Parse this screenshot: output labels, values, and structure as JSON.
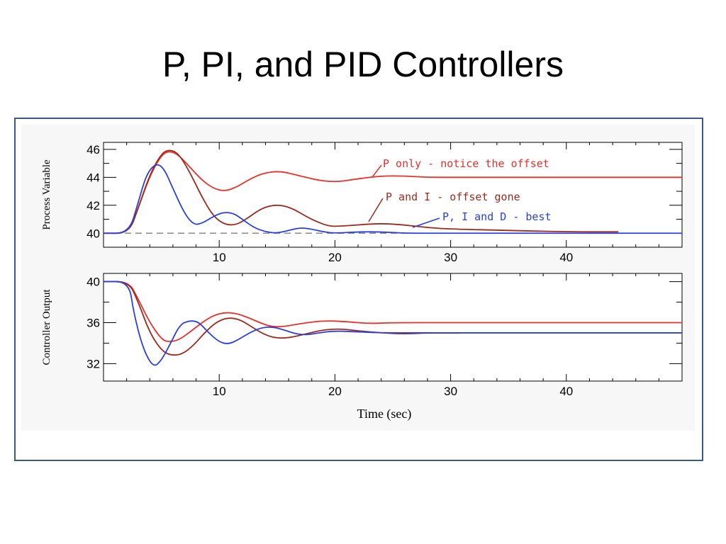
{
  "slide": {
    "title": "P, PI, and PID Controllers"
  },
  "colors": {
    "p_only": "#e8302a",
    "p_and_i": "#9b2a1f",
    "pid": "#2b3fe0",
    "setpoint": "#8a8a8a",
    "frame_border": "#3a5a84",
    "plot_bg": "#f7f7f7"
  },
  "chart_data": [
    {
      "type": "line",
      "ylabel": "Process Variable",
      "xlabel": "",
      "xlim": [
        0,
        50
      ],
      "ylim": [
        39,
        46.5
      ],
      "xticks": [
        10,
        20,
        30,
        40
      ],
      "yticks": [
        40,
        42,
        44,
        46
      ],
      "setpoint": 40,
      "annotations": [
        {
          "text": "P only - notice the offset",
          "series": "P only"
        },
        {
          "text": "P and I - offset gone",
          "series": "P and I"
        },
        {
          "text": "P, I and D - best",
          "series": "P, I and D"
        }
      ],
      "series": [
        {
          "name": "P only",
          "x": [
            0,
            2.2,
            3,
            4,
            5,
            5.7,
            6.5,
            7.5,
            8.5,
            9.5,
            10.5,
            11.5,
            12.5,
            13.5,
            14.5,
            15.5,
            16.5,
            17.5,
            18.5,
            19.5,
            20.5,
            22,
            24,
            26,
            28,
            30,
            35,
            40,
            45,
            50
          ],
          "y": [
            40,
            40,
            41.8,
            44.1,
            45.6,
            45.9,
            45.6,
            44.7,
            43.8,
            43.2,
            43.0,
            43.3,
            43.8,
            44.2,
            44.4,
            44.4,
            44.2,
            44.0,
            43.8,
            43.7,
            43.7,
            43.9,
            44.1,
            44.1,
            44.0,
            44.0,
            44.0,
            44.0,
            44.0,
            44.0
          ]
        },
        {
          "name": "P and I",
          "x": [
            0,
            2.2,
            3,
            4,
            5,
            5.7,
            6.5,
            7.5,
            8.5,
            9.5,
            10.5,
            11.5,
            12.5,
            13.5,
            14.5,
            15.5,
            16.5,
            17.5,
            18.5,
            19.5,
            20.5,
            22,
            24,
            26,
            28,
            30,
            35,
            40,
            44.5
          ],
          "y": [
            40,
            40,
            41.8,
            44.2,
            45.7,
            46.0,
            45.7,
            44.3,
            42.6,
            41.2,
            40.6,
            40.6,
            41.1,
            41.7,
            42.0,
            42.0,
            41.7,
            41.2,
            40.8,
            40.5,
            40.5,
            40.6,
            40.7,
            40.6,
            40.4,
            40.3,
            40.2,
            40.1,
            40.1
          ]
        },
        {
          "name": "P, I and D",
          "x": [
            0,
            2.2,
            3,
            3.7,
            4.5,
            5.2,
            6,
            7,
            7.8,
            8.5,
            9.3,
            10,
            10.6,
            11.3,
            12,
            13,
            14,
            15,
            16,
            17,
            18,
            19,
            20,
            22,
            24,
            26,
            28,
            30,
            32,
            35,
            40,
            45,
            50
          ],
          "y": [
            40,
            40,
            42.2,
            44.2,
            45.0,
            44.7,
            43.2,
            41.4,
            40.6,
            40.7,
            41.1,
            41.4,
            41.5,
            41.4,
            41.0,
            40.4,
            40.1,
            40.0,
            40.2,
            40.4,
            40.3,
            40.1,
            40.0,
            40.1,
            40.1,
            40.0,
            40.0,
            40.0,
            40.0,
            40.0,
            40.0,
            40.0,
            40.0
          ]
        }
      ]
    },
    {
      "type": "line",
      "ylabel": "Controller Output",
      "xlabel": "Time (sec)",
      "xlim": [
        0,
        50
      ],
      "ylim": [
        30.3,
        40.8
      ],
      "xticks": [
        10,
        20,
        30,
        40
      ],
      "yticks": [
        32,
        36,
        40
      ],
      "series": [
        {
          "name": "P only",
          "x": [
            0,
            2.2,
            3,
            4,
            5,
            5.6,
            6.5,
            7.5,
            8.5,
            9.5,
            10.5,
            11.5,
            12.5,
            13.5,
            14.5,
            15.5,
            17,
            19,
            21,
            23,
            25,
            30,
            35,
            40,
            45,
            50
          ],
          "y": [
            40,
            40,
            38.3,
            36.0,
            34.4,
            34.1,
            34.3,
            35.1,
            36.0,
            36.7,
            37.0,
            36.9,
            36.5,
            36.0,
            35.6,
            35.6,
            35.9,
            36.2,
            36.1,
            35.9,
            36.0,
            36.0,
            36.0,
            36.0,
            36.0,
            36.0
          ]
        },
        {
          "name": "P and I",
          "x": [
            0,
            2.2,
            3,
            4,
            5,
            5.8,
            6.8,
            7.8,
            8.8,
            9.8,
            10.8,
            11.8,
            12.8,
            13.8,
            14.8,
            16,
            17.5,
            19,
            20.5,
            22,
            24,
            26,
            28,
            30.8
          ],
          "y": [
            40,
            40,
            38.0,
            35.0,
            33.3,
            32.8,
            32.9,
            33.8,
            35.1,
            36.1,
            36.5,
            36.3,
            35.6,
            34.9,
            34.5,
            34.5,
            34.9,
            35.3,
            35.4,
            35.2,
            35.0,
            34.9,
            35.0,
            35.0
          ]
        },
        {
          "name": "P, I and D",
          "x": [
            0,
            2.2,
            2.6,
            3.4,
            4.3,
            5,
            5.8,
            6.6,
            7.4,
            8.2,
            9,
            10,
            10.8,
            11.6,
            12.6,
            13.6,
            14.6,
            15.6,
            16.6,
            17.6,
            18.6,
            20,
            22,
            24,
            26,
            30,
            35,
            40,
            45,
            50
          ],
          "y": [
            40,
            40,
            37.0,
            33.5,
            31.6,
            32.3,
            34.0,
            35.8,
            36.2,
            36.1,
            35.1,
            34.1,
            33.9,
            34.3,
            35.0,
            35.5,
            35.6,
            35.3,
            34.9,
            34.8,
            35.0,
            35.2,
            35.1,
            35.0,
            35.0,
            35.0,
            35.0,
            35.0,
            35.0,
            35.0
          ]
        }
      ]
    }
  ]
}
